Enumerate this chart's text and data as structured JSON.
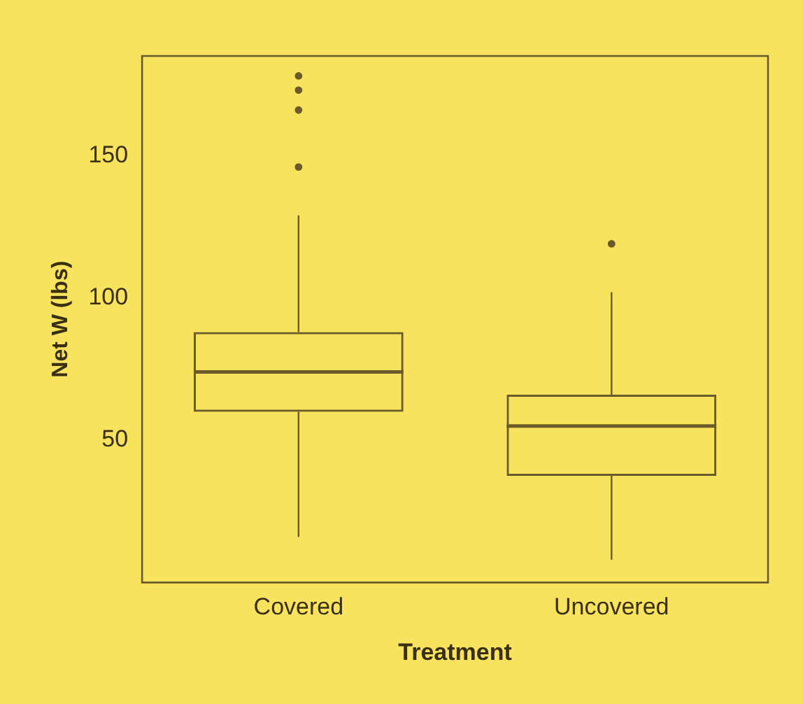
{
  "chart_data": {
    "type": "box",
    "xlabel": "Treatment",
    "ylabel": "Net W (lbs)",
    "categories": [
      "Covered",
      "Uncovered"
    ],
    "boxes": [
      {
        "low": 16,
        "q1": 60,
        "median": 74,
        "q3": 88,
        "high": 129,
        "outliers": [
          146,
          166,
          173,
          178
        ]
      },
      {
        "low": 8,
        "q1": 37.5,
        "median": 55,
        "q3": 66,
        "high": 102,
        "outliers": [
          119
        ]
      }
    ],
    "color": "#6b5a2a",
    "ylim": [
      0,
      185
    ],
    "yticks": [
      50,
      100,
      150
    ],
    "grid": false,
    "legend": false
  }
}
